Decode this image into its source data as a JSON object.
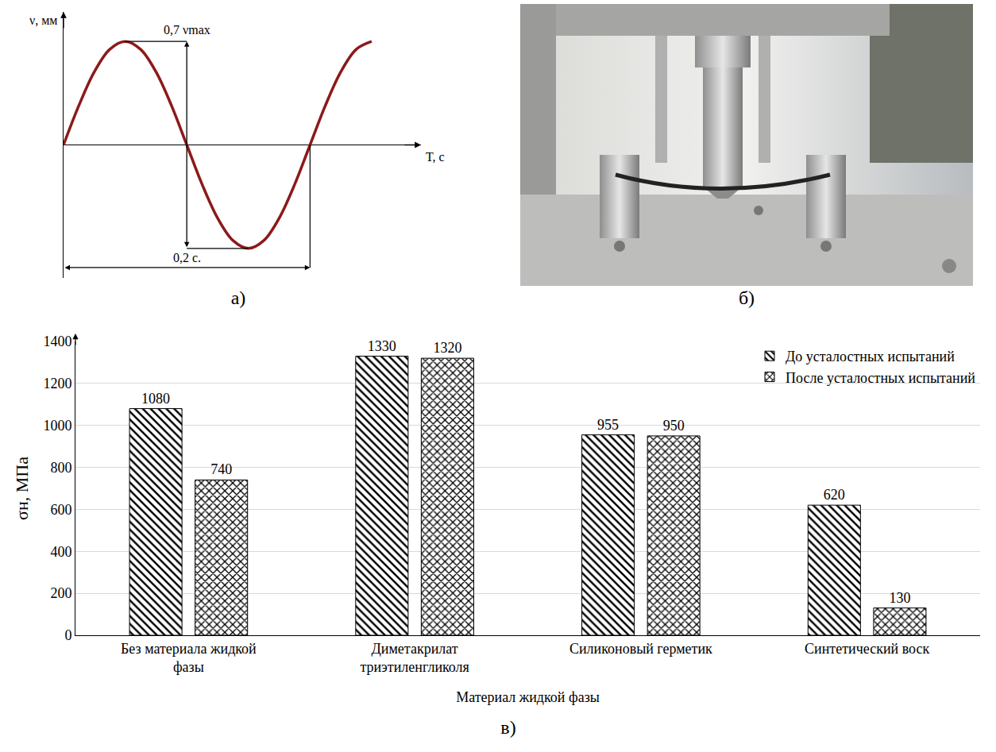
{
  "chart_data": [
    {
      "type": "line",
      "title": "а)",
      "xlabel": "T, с",
      "ylabel": "ν, мм",
      "x": [
        0,
        0.0125,
        0.025,
        0.0375,
        0.05,
        0.0625,
        0.075,
        0.0875,
        0.1,
        0.1125,
        0.125,
        0.1375,
        0.15,
        0.1625,
        0.175,
        0.1875,
        0.2,
        0.2125,
        0.225,
        0.2375,
        0.25
      ],
      "values": [
        0,
        0.268,
        0.495,
        0.647,
        0.7,
        0.647,
        0.495,
        0.268,
        0,
        -0.268,
        -0.495,
        -0.647,
        -0.7,
        -0.647,
        -0.495,
        -0.268,
        0,
        0.268,
        0.495,
        0.647,
        0.7
      ],
      "color": "#8b1a1a",
      "xlim": [
        0,
        0.29
      ],
      "ylim": [
        -0.9,
        0.9
      ],
      "xticks": [],
      "yticks": [],
      "tick_labels": false,
      "grid": false,
      "annotations": [
        "0,7 νmax",
        "0,2 с."
      ]
    },
    {
      "type": "image",
      "title": "б)"
    },
    {
      "type": "bar",
      "title": "в)",
      "xlabel": "Материал жидкой фазы",
      "ylabel": "σн, МПа",
      "categories": [
        "Без материала жидкой фазы",
        "Диметакрилат триэтиленгликоля",
        "Силиконовый герметик",
        "Синтетический воск"
      ],
      "series": [
        {
          "name": "До усталостных испытаний",
          "color": "#000000",
          "marker": "hatch",
          "values": [
            1080,
            1330,
            955,
            620
          ]
        },
        {
          "name": "После усталостных испытаний",
          "color": "#000000",
          "marker": "crosshatch",
          "values": [
            740,
            1320,
            950,
            130
          ]
        }
      ],
      "ylim": [
        0,
        1400
      ],
      "yticks": [
        0,
        200,
        400,
        600,
        800,
        1000,
        1200,
        1400
      ],
      "grid": true,
      "legend": "top right",
      "data_labels": true
    }
  ]
}
